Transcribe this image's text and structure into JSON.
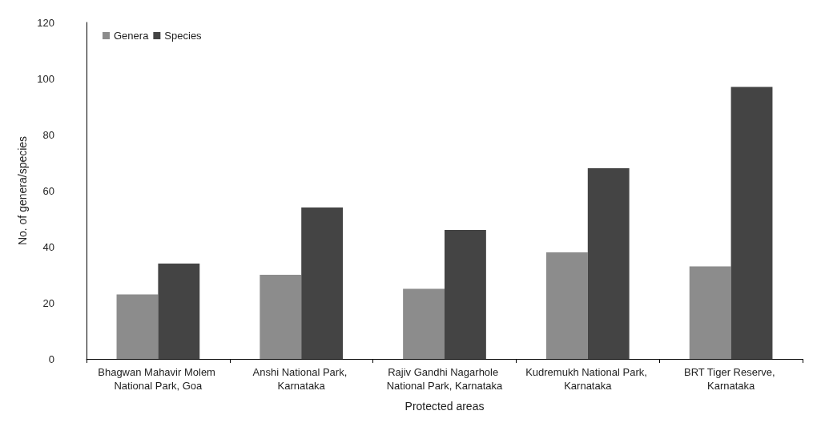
{
  "chart_data": {
    "type": "bar",
    "xlabel": "Protected areas",
    "ylabel": "No. of genera/species",
    "categories": [
      "Bhagwan Mahavir Molem National Park, Goa",
      "Anshi National Park, Karnataka",
      "Rajiv Gandhi Nagarhole National Park, Karnataka",
      "Kudremukh National Park, Karnataka",
      "BRT Tiger Reserve, Karnataka"
    ],
    "series": [
      {
        "name": "Genera",
        "color": "#8c8c8c",
        "values": [
          23,
          30,
          25,
          38,
          33
        ]
      },
      {
        "name": "Species",
        "color": "#444444",
        "values": [
          34,
          54,
          46,
          68,
          97
        ]
      }
    ],
    "ylim": [
      0,
      120
    ],
    "yticks": [
      0,
      20,
      40,
      60,
      80,
      100,
      120
    ],
    "grid": false,
    "legend": "top left"
  }
}
